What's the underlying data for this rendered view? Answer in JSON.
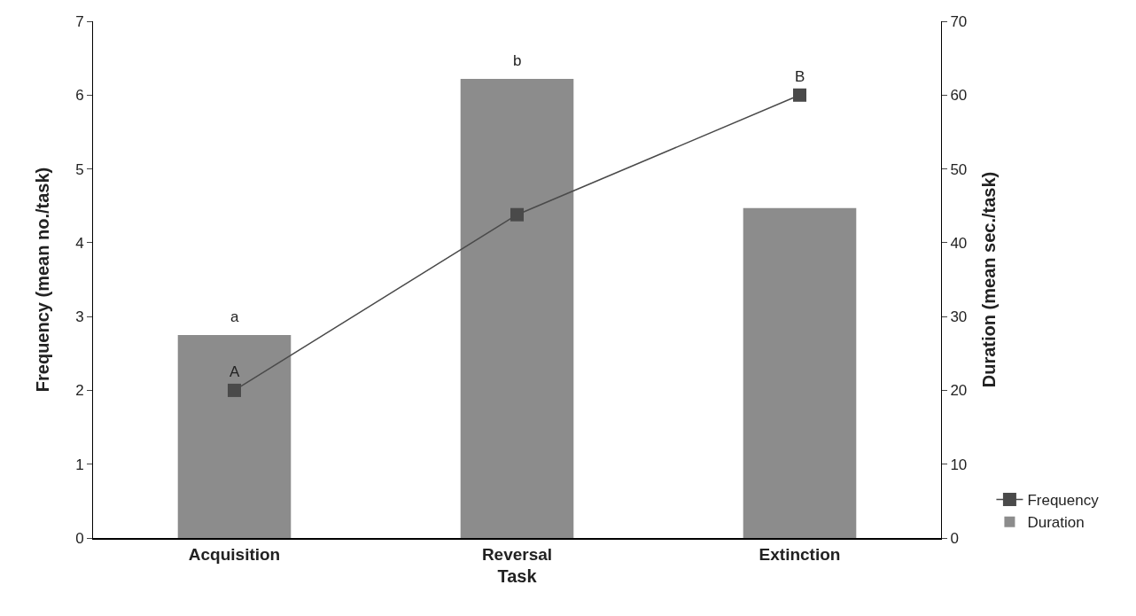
{
  "chart_data": {
    "type": "bar",
    "xlabel": "Task",
    "ylabel": "Frequency (mean no./task)",
    "y2label": "Duration (mean sec./task)",
    "categories": [
      "Acquisition",
      "Reversal",
      "Extinction"
    ],
    "series": [
      {
        "name": "Frequency",
        "type": "line",
        "color": "#4a4a4a",
        "values": [
          2.0,
          4.38,
          6.0
        ],
        "marker": "square",
        "line_style": "solid"
      },
      {
        "name": "Duration",
        "color": "#8c8c8c",
        "values": [
          27.5,
          62.2,
          44.7
        ],
        "axis": "y2"
      }
    ],
    "ylim": [
      0,
      7
    ],
    "yticks": [
      0,
      1,
      2,
      3,
      4,
      5,
      6,
      7
    ],
    "y2lim": [
      0,
      70
    ],
    "y2ticks": [
      0,
      10,
      20,
      30,
      40,
      50,
      60,
      70
    ],
    "annotations": [
      {
        "text": "a",
        "x": "Acquisition",
        "y": 2.75
      },
      {
        "text": "b",
        "x": "Reversal",
        "y": 6.22
      },
      {
        "text": "A",
        "x": "Acquisition",
        "y": 2.0
      },
      {
        "text": "B",
        "x": "Extinction",
        "y": 6.0
      }
    ],
    "grid": false,
    "legend": "bottom right"
  }
}
